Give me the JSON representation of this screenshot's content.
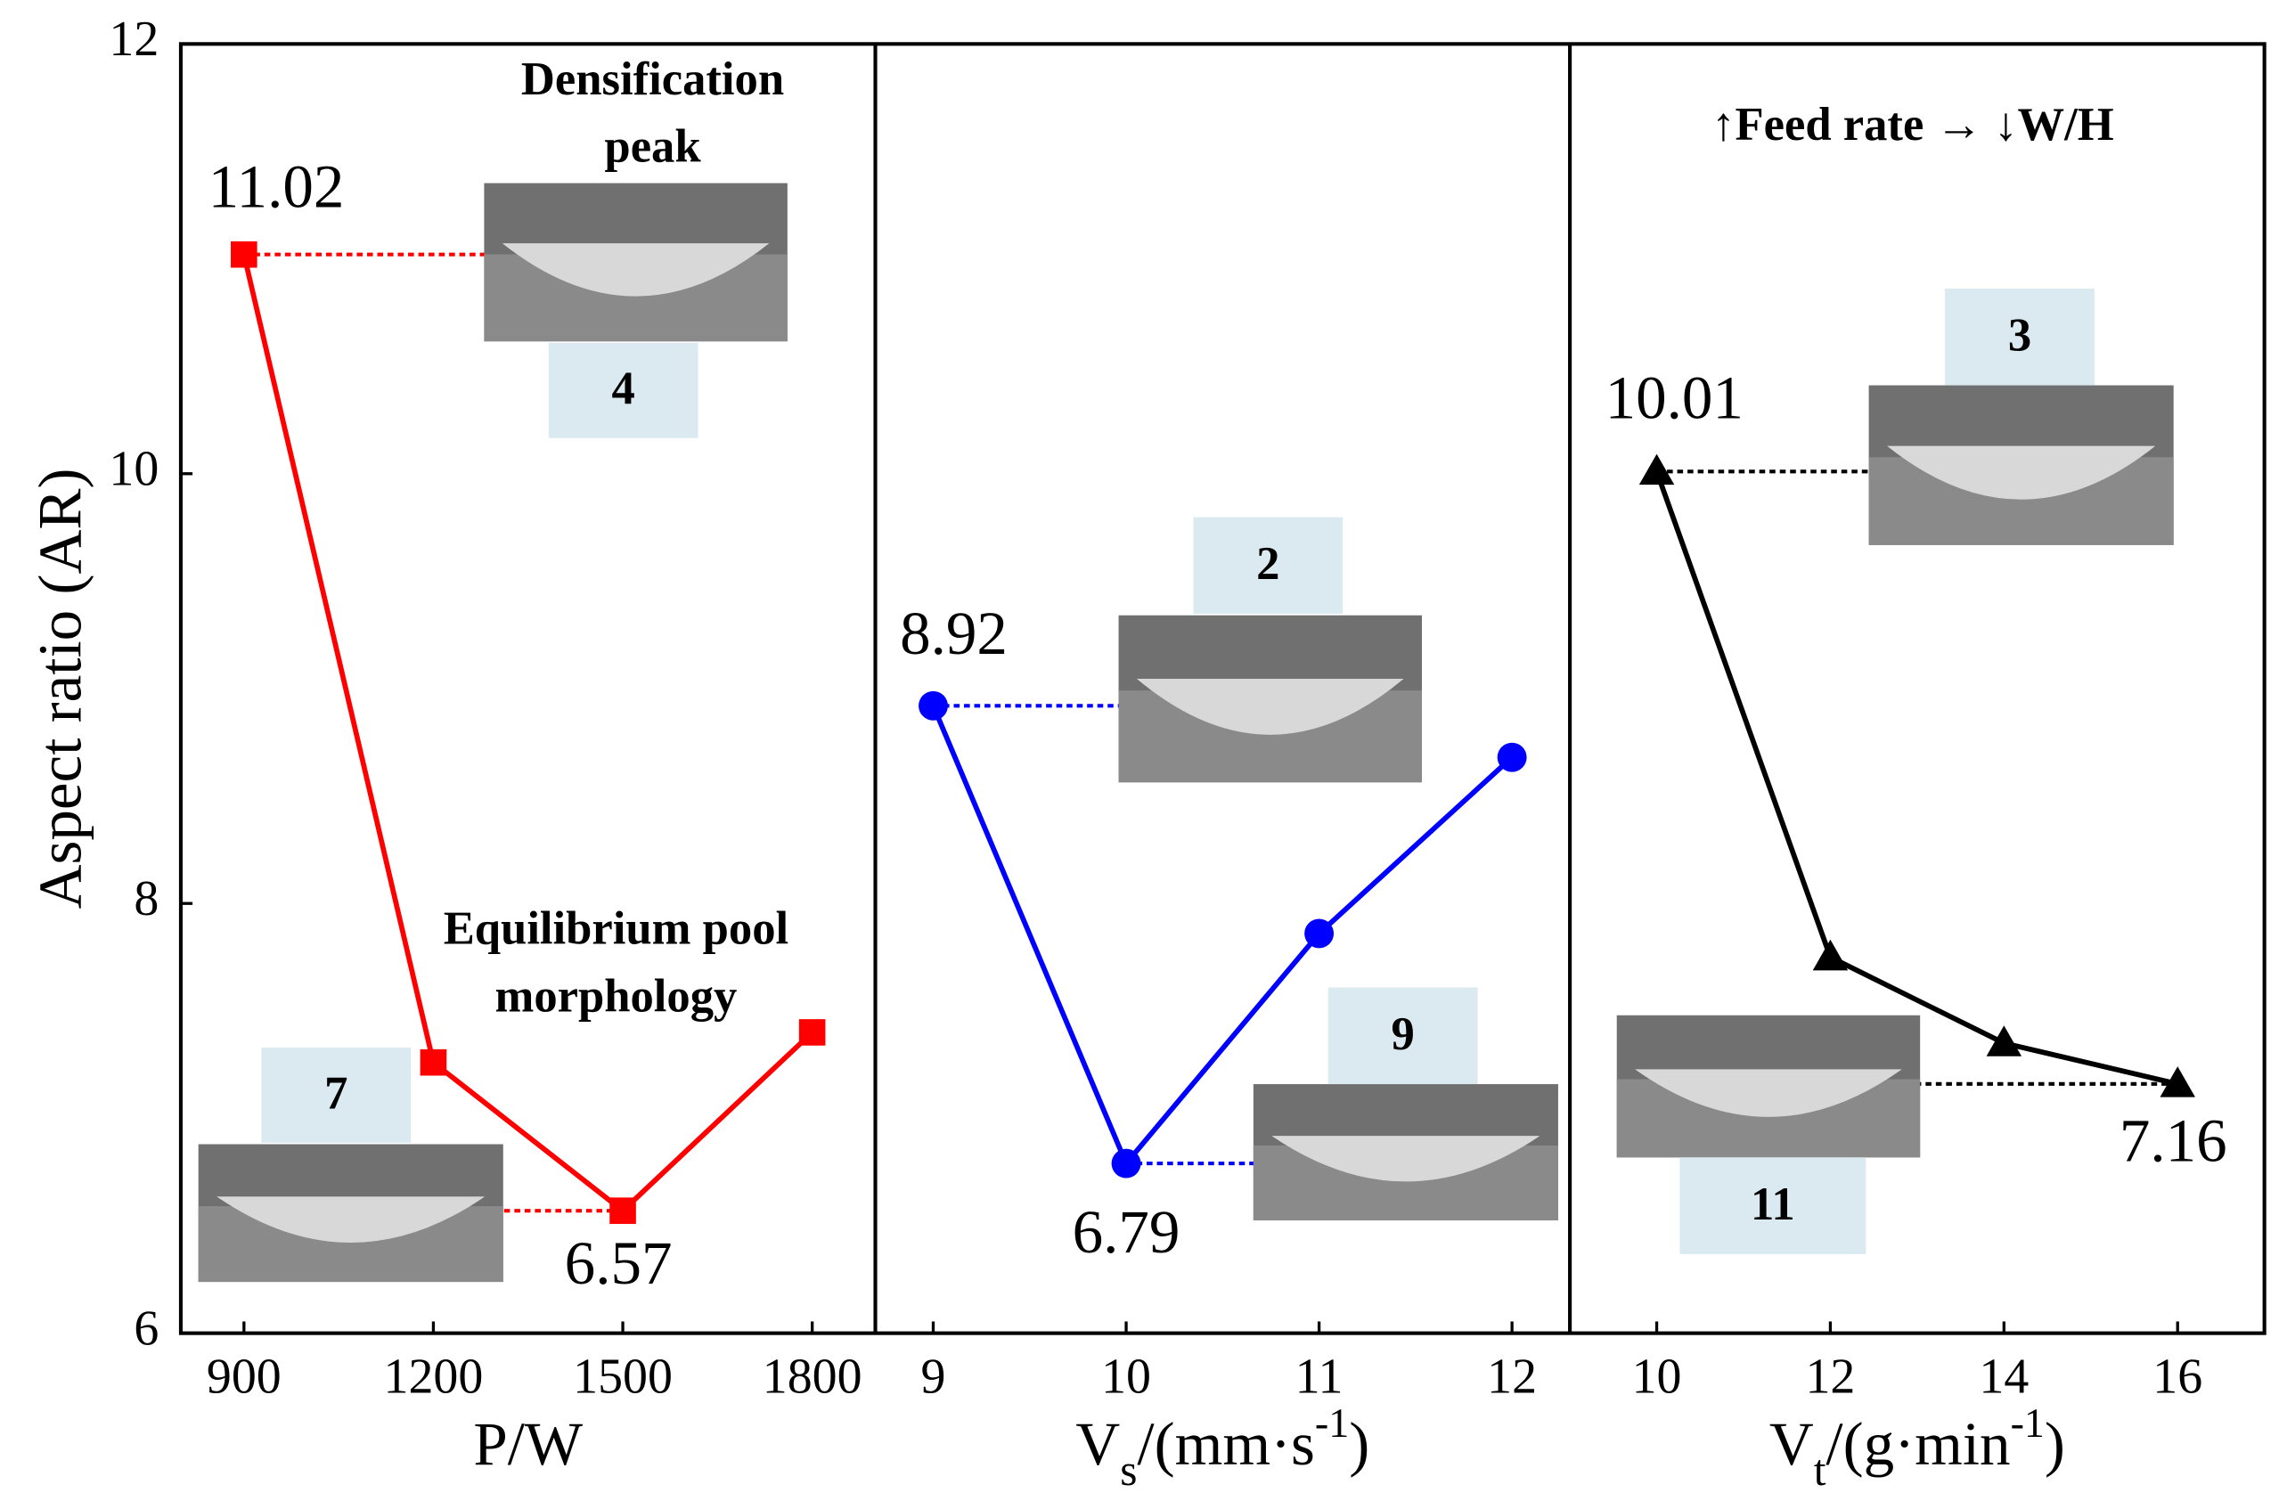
{
  "chart_data": [
    {
      "type": "line",
      "x": [
        900,
        1200,
        1500,
        1800
      ],
      "xlim": [
        800,
        1900
      ],
      "xticks": [
        900,
        1200,
        1500,
        1800
      ],
      "ylim": [
        6,
        12
      ],
      "yticks": [
        6,
        8,
        10,
        12
      ],
      "y_label": "Aspect  ratio (AR)",
      "x_label": {
        "main": "P/W"
      },
      "series": [
        {
          "color": "#ff0000",
          "marker": "square",
          "values": [
            11.02,
            7.26,
            6.57,
            7.4
          ],
          "value_labels": [
            "11.02",
            null,
            "6.57",
            null
          ]
        }
      ],
      "annotations": [
        [
          "Densification",
          "peak"
        ],
        [
          "Equilibrium pool",
          "morphology"
        ]
      ],
      "insets": [
        {
          "label": "4"
        },
        {
          "label": "7"
        }
      ]
    },
    {
      "type": "line",
      "x": [
        9,
        10,
        11,
        12
      ],
      "xlim": [
        8.7,
        12.3
      ],
      "xticks": [
        9,
        10,
        11,
        12
      ],
      "ylim": [
        6,
        12
      ],
      "x_label": {
        "main": "V",
        "sub": "s",
        "rest": "/(mm·s",
        "sup": "-1",
        "end": ")"
      },
      "series": [
        {
          "color": "#0000ff",
          "marker": "circle",
          "values": [
            8.92,
            6.79,
            7.86,
            8.68
          ],
          "value_labels": [
            "8.92",
            "6.79",
            null,
            null
          ]
        }
      ],
      "insets": [
        {
          "label": "2"
        },
        {
          "label": "9"
        }
      ]
    },
    {
      "type": "line",
      "x": [
        10,
        12,
        14,
        16
      ],
      "xlim": [
        9,
        17
      ],
      "xticks": [
        10,
        12,
        14,
        16
      ],
      "ylim": [
        6,
        12
      ],
      "x_label": {
        "main": "V",
        "sub": "t",
        "rest": "/(g·min",
        "sup": "-1",
        "end": ")"
      },
      "series": [
        {
          "color": "#000000",
          "marker": "triangle",
          "values": [
            10.01,
            7.75,
            7.35,
            7.16
          ],
          "value_labels": [
            "10.01",
            null,
            null,
            "7.16"
          ]
        }
      ],
      "annotations": [
        [
          "↑Feed rate → ↓W/H"
        ]
      ],
      "insets": [
        {
          "label": "3"
        },
        {
          "label": "11"
        }
      ]
    }
  ]
}
